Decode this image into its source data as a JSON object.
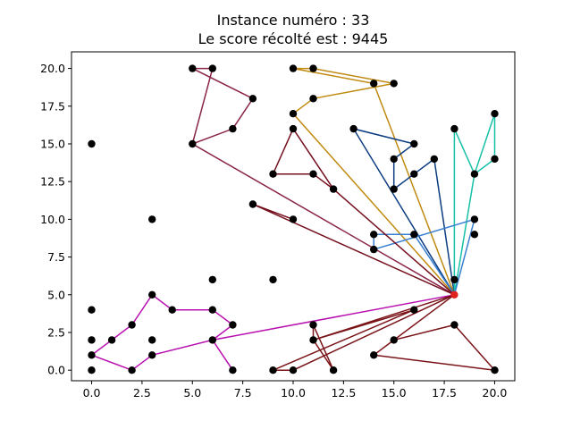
{
  "chart_data": {
    "type": "scatter",
    "title_lines": [
      "Instance numéro : 33",
      "Le score récolté est : 9445"
    ],
    "xlim": [
      -1,
      21
    ],
    "ylim": [
      -0.7,
      21.1
    ],
    "xticks": [
      0.0,
      2.5,
      5.0,
      7.5,
      10.0,
      12.5,
      15.0,
      17.5,
      20.0
    ],
    "xtick_labels": [
      "0.0",
      "2.5",
      "5.0",
      "7.5",
      "10.0",
      "12.5",
      "15.0",
      "17.5",
      "20.0"
    ],
    "yticks": [
      0.0,
      2.5,
      5.0,
      7.5,
      10.0,
      12.5,
      15.0,
      17.5,
      20.0
    ],
    "ytick_labels": [
      "0.0",
      "2.5",
      "5.0",
      "7.5",
      "10.0",
      "12.5",
      "15.0",
      "17.5",
      "20.0"
    ],
    "grid": false,
    "depot": {
      "x": 18,
      "y": 5,
      "color": "#e0221e"
    },
    "points": [
      [
        0,
        15
      ],
      [
        3,
        10
      ],
      [
        6,
        6
      ],
      [
        9,
        6
      ],
      [
        0,
        4
      ],
      [
        0,
        2
      ],
      [
        1,
        2
      ],
      [
        0,
        1
      ],
      [
        0,
        0
      ],
      [
        2,
        0
      ],
      [
        2,
        3
      ],
      [
        3,
        5
      ],
      [
        4,
        4
      ],
      [
        6,
        4
      ],
      [
        7,
        3
      ],
      [
        6,
        2
      ],
      [
        7,
        0
      ],
      [
        3,
        2
      ],
      [
        3,
        1
      ],
      [
        5,
        20
      ],
      [
        6,
        20
      ],
      [
        8,
        18
      ],
      [
        7,
        16
      ],
      [
        5,
        15
      ],
      [
        10,
        16
      ],
      [
        9,
        13
      ],
      [
        11,
        13
      ],
      [
        12,
        12
      ],
      [
        8,
        11
      ],
      [
        10,
        10
      ],
      [
        10,
        20
      ],
      [
        11,
        20
      ],
      [
        14,
        19
      ],
      [
        15,
        19
      ],
      [
        11,
        18
      ],
      [
        10,
        17
      ],
      [
        13,
        16
      ],
      [
        16,
        15
      ],
      [
        15,
        14
      ],
      [
        15,
        12
      ],
      [
        16,
        13
      ],
      [
        17,
        14
      ],
      [
        18,
        16
      ],
      [
        20,
        17
      ],
      [
        19,
        13
      ],
      [
        20,
        14
      ],
      [
        18,
        6
      ],
      [
        14,
        9
      ],
      [
        16,
        9
      ],
      [
        19,
        10
      ],
      [
        19,
        9
      ],
      [
        14,
        8
      ],
      [
        16,
        4
      ],
      [
        11,
        3
      ],
      [
        11,
        2
      ],
      [
        12,
        0
      ],
      [
        9,
        0
      ],
      [
        10,
        0
      ],
      [
        18,
        3
      ],
      [
        20,
        0
      ],
      [
        15,
        2
      ],
      [
        14,
        1
      ]
    ],
    "routes": [
      {
        "color": "#c08a10",
        "path": [
          [
            18,
            5
          ],
          [
            14,
            19
          ],
          [
            10,
            20
          ],
          [
            11,
            20
          ],
          [
            15,
            19
          ],
          [
            11,
            18
          ],
          [
            10,
            17
          ],
          [
            18,
            5
          ]
        ]
      },
      {
        "color": "#0c3c82",
        "path": [
          [
            18,
            5
          ],
          [
            13,
            16
          ],
          [
            16,
            15
          ],
          [
            15,
            14
          ],
          [
            15,
            12
          ],
          [
            16,
            13
          ],
          [
            17,
            14
          ],
          [
            18,
            5
          ]
        ]
      },
      {
        "color": "#16c0a8",
        "path": [
          [
            18,
            5
          ],
          [
            18,
            16
          ],
          [
            19,
            13
          ],
          [
            20,
            17
          ],
          [
            20,
            14
          ],
          [
            19,
            13
          ],
          [
            18,
            5
          ]
        ]
      },
      {
        "color": "#3a80d0",
        "path": [
          [
            18,
            5
          ],
          [
            19,
            10
          ],
          [
            14,
            8
          ],
          [
            14,
            9
          ],
          [
            16,
            9
          ],
          [
            18,
            5
          ]
        ]
      },
      {
        "color": "#8a2448",
        "path": [
          [
            18,
            5
          ],
          [
            5,
            15
          ],
          [
            7,
            16
          ],
          [
            8,
            18
          ],
          [
            5,
            20
          ],
          [
            6,
            20
          ],
          [
            5,
            15
          ]
        ]
      },
      {
        "color": "#74101e",
        "path": [
          [
            18,
            5
          ],
          [
            12,
            12
          ],
          [
            10,
            16
          ],
          [
            9,
            13
          ],
          [
            11,
            13
          ],
          [
            12,
            12
          ]
        ]
      },
      {
        "color": "#74101e",
        "path": [
          [
            18,
            5
          ],
          [
            8,
            11
          ],
          [
            10,
            10
          ],
          [
            8,
            11
          ]
        ]
      },
      {
        "color": "#b810b0",
        "path": [
          [
            18,
            5
          ],
          [
            6,
            2
          ],
          [
            7,
            3
          ],
          [
            6,
            4
          ],
          [
            4,
            4
          ],
          [
            3,
            5
          ],
          [
            2,
            3
          ],
          [
            1,
            2
          ],
          [
            0,
            1
          ],
          [
            2,
            0
          ],
          [
            3,
            1
          ],
          [
            6,
            2
          ],
          [
            7,
            0
          ],
          [
            6,
            2
          ],
          [
            18,
            5
          ]
        ]
      },
      {
        "color": "#7a1418",
        "path": [
          [
            18,
            5
          ],
          [
            11,
            2
          ],
          [
            11,
            3
          ],
          [
            12,
            0
          ],
          [
            11,
            2
          ],
          [
            16,
            4
          ],
          [
            9,
            0
          ],
          [
            10,
            0
          ],
          [
            18,
            5
          ]
        ]
      },
      {
        "color": "#7a1418",
        "path": [
          [
            18,
            5
          ],
          [
            14,
            1
          ],
          [
            15,
            2
          ],
          [
            18,
            3
          ],
          [
            20,
            0
          ],
          [
            14,
            1
          ]
        ]
      }
    ]
  }
}
